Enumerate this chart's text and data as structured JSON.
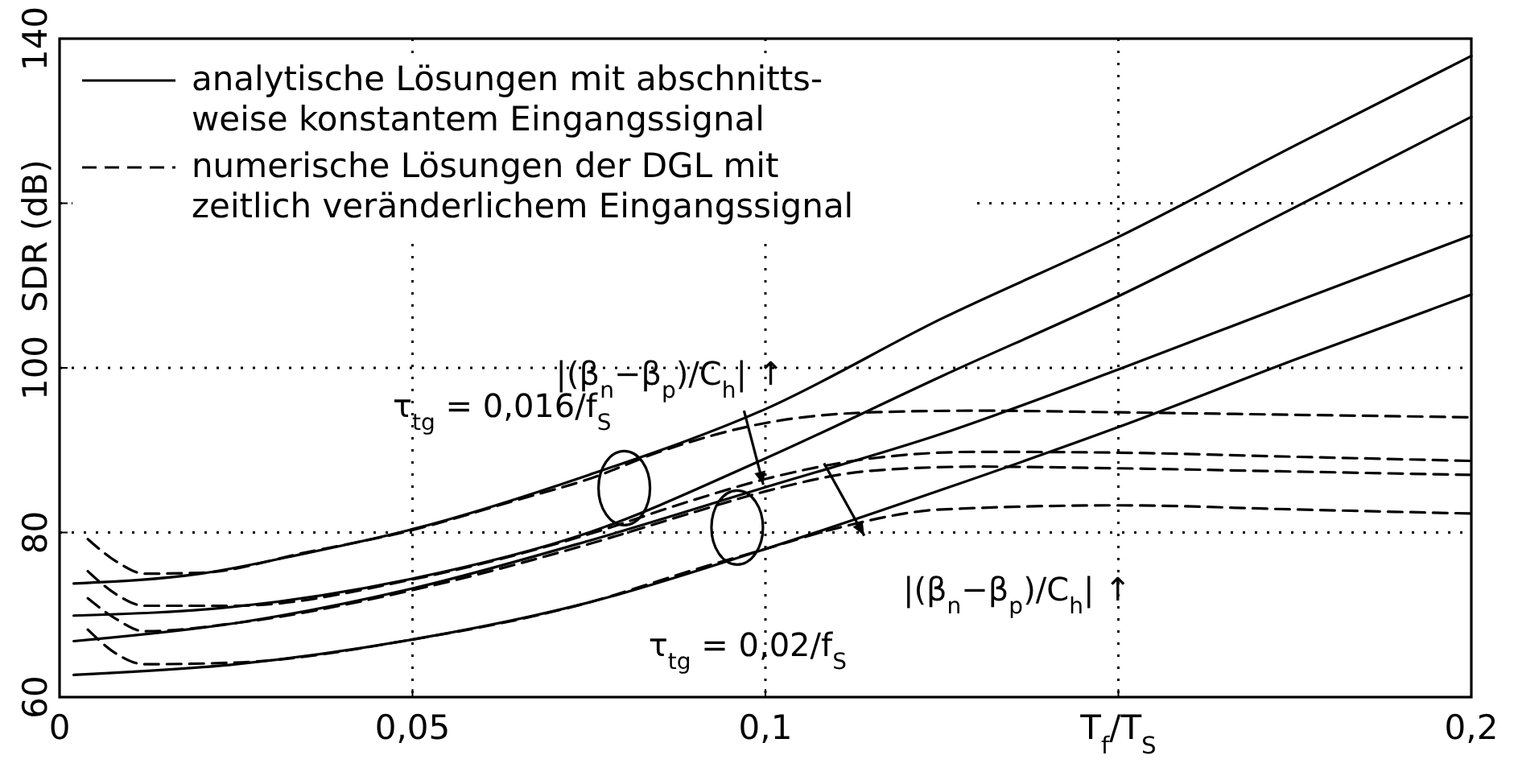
{
  "chart_data": {
    "type": "line",
    "xlabel": "T$_{f}$/T$_{S}$",
    "ylabel": "SDR (dB)",
    "xlim": [
      0,
      0.2
    ],
    "ylim": [
      60,
      140
    ],
    "xticks": [
      0,
      {
        "value": 0.05,
        "label": "0,05"
      },
      {
        "value": 0.1,
        "label": "0,1"
      },
      {
        "value": 0.15,
        "label": null
      },
      {
        "value": 0.2,
        "label": "0,2"
      }
    ],
    "yticks": [
      60,
      80,
      100,
      {
        "value": 120,
        "label": null
      },
      140
    ],
    "grid": true,
    "legend": "top left",
    "marker": "none",
    "series": [
      {
        "name": "analytische Lösungen mit abschnitts-\nweise konstantem Eingangssignal",
        "color": "#000000",
        "line_style": "solid",
        "x": [
          0.002,
          0.02,
          0.035,
          0.05,
          0.075,
          0.1,
          0.125,
          0.15,
          0.175,
          0.2
        ],
        "values": [
          73.8,
          75,
          77.5,
          80.4,
          87,
          95,
          106,
          115.9,
          127,
          137.9
        ]
      },
      {
        "color": "#000000",
        "line_style": "solid",
        "x": [
          0.002,
          0.025,
          0.05,
          0.075,
          0.1,
          0.125,
          0.15,
          0.175,
          0.2
        ],
        "values": [
          69.9,
          71,
          74.4,
          80,
          89,
          99,
          108.7,
          119.5,
          130.5
        ]
      },
      {
        "color": "#000000",
        "line_style": "solid",
        "x": [
          0.002,
          0.025,
          0.05,
          0.075,
          0.1,
          0.125,
          0.15,
          0.175,
          0.2
        ],
        "values": [
          66.8,
          69,
          73.2,
          79,
          85.5,
          92,
          99.8,
          108,
          116.1
        ]
      },
      {
        "color": "#000000",
        "line_style": "solid",
        "x": [
          0.002,
          0.025,
          0.05,
          0.075,
          0.1,
          0.125,
          0.15,
          0.175,
          0.2
        ],
        "values": [
          62.7,
          64,
          67,
          71.5,
          78,
          85.2,
          92.8,
          101,
          108.9
        ]
      },
      {
        "name": "numerische Lösungen der DGL mit\nzeitlich veränderlichem Eingangssignal",
        "color": "#000000",
        "line_style": "dashed",
        "x": [
          0.004,
          0.008,
          0.012,
          0.02,
          0.035,
          0.05,
          0.065,
          0.075,
          0.085,
          0.1,
          0.115,
          0.13,
          0.15,
          0.175,
          0.2
        ],
        "values": [
          79.2,
          76.5,
          75,
          75.1,
          77.6,
          80.3,
          84,
          86.5,
          89.8,
          93.3,
          94.6,
          94.8,
          94.6,
          94.3,
          94
        ]
      },
      {
        "color": "#000000",
        "line_style": "dashed",
        "x": [
          0.004,
          0.008,
          0.012,
          0.025,
          0.05,
          0.075,
          0.09,
          0.1,
          0.115,
          0.13,
          0.15,
          0.175,
          0.2
        ],
        "values": [
          75.3,
          72.5,
          71.1,
          71.1,
          74.3,
          79.8,
          84,
          86.5,
          89,
          89.8,
          89.7,
          89.2,
          88.7
        ]
      },
      {
        "color": "#000000",
        "line_style": "dashed",
        "x": [
          0.004,
          0.008,
          0.012,
          0.025,
          0.05,
          0.075,
          0.09,
          0.1,
          0.115,
          0.13,
          0.15,
          0.175,
          0.2
        ],
        "values": [
          72,
          69.5,
          68,
          69,
          73,
          78.6,
          82.5,
          85,
          87.5,
          88,
          87.8,
          87.4,
          87
        ]
      },
      {
        "color": "#000000",
        "line_style": "dashed",
        "x": [
          0.004,
          0.008,
          0.012,
          0.025,
          0.05,
          0.075,
          0.09,
          0.1,
          0.11,
          0.125,
          0.15,
          0.175,
          0.2
        ],
        "values": [
          68.2,
          65.3,
          64,
          64.2,
          67,
          71.5,
          75.5,
          78,
          80.5,
          82.8,
          83.3,
          82.8,
          82.3
        ]
      }
    ],
    "annotations": [
      "τ$_{tg}$ = 0,016/f$_{S}$",
      "τ$_{tg}$ = 0,02/f$_{S}$",
      {
        "text": "|(β$_{n}$−β$_{p}$)/C$_{h}$| ↑",
        "x": 0.0997,
        "y": 85.8
      },
      "|(β$_{n}$−β$_{p}$)/C$_{h}$| ↑"
    ]
  }
}
